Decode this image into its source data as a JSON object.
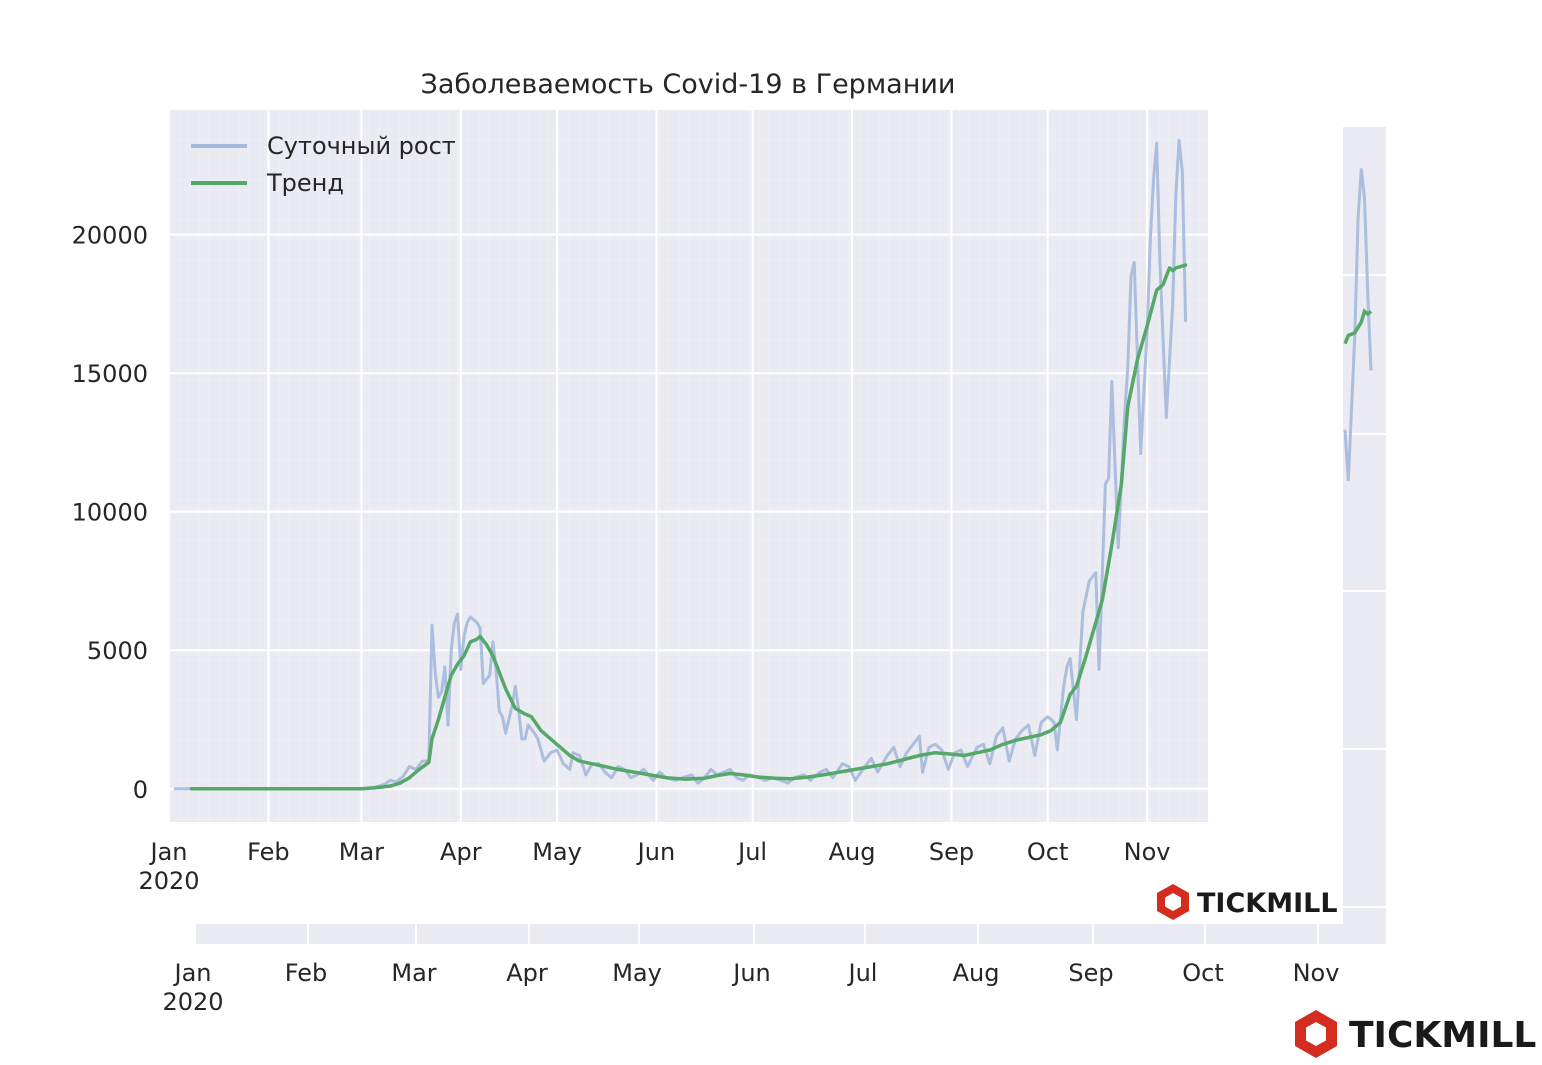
{
  "chart_data": {
    "type": "line",
    "title": "Заболеваемость Covid-19 в Германии",
    "xlabel": "",
    "ylabel": "",
    "ylim": [
      -1200,
      24500
    ],
    "yticks": [
      0,
      5000,
      10000,
      15000,
      20000
    ],
    "ytick_labels": [
      "0",
      "5000",
      "10000",
      "15000",
      "20000"
    ],
    "xticks": [
      {
        "date": "2020-01-01",
        "label": "Jan",
        "sublabel": "2020"
      },
      {
        "date": "2020-02-01",
        "label": "Feb"
      },
      {
        "date": "2020-03-01",
        "label": "Mar"
      },
      {
        "date": "2020-04-01",
        "label": "Apr"
      },
      {
        "date": "2020-05-01",
        "label": "May"
      },
      {
        "date": "2020-06-01",
        "label": "Jun"
      },
      {
        "date": "2020-07-01",
        "label": "Jul"
      },
      {
        "date": "2020-08-01",
        "label": "Aug"
      },
      {
        "date": "2020-09-01",
        "label": "Sep"
      },
      {
        "date": "2020-10-01",
        "label": "Oct"
      },
      {
        "date": "2020-11-01",
        "label": "Nov"
      }
    ],
    "xlim": [
      "2020-01-01",
      "2020-11-20"
    ],
    "grid": true,
    "legend_position": "top-left",
    "series": [
      {
        "name": "Суточный рост",
        "color": "#a4b9dc",
        "points": [
          [
            "2020-01-03",
            0
          ],
          [
            "2020-01-10",
            0
          ],
          [
            "2020-02-01",
            0
          ],
          [
            "2020-02-15",
            0
          ],
          [
            "2020-03-01",
            0
          ],
          [
            "2020-03-05",
            50
          ],
          [
            "2020-03-08",
            150
          ],
          [
            "2020-03-10",
            300
          ],
          [
            "2020-03-12",
            250
          ],
          [
            "2020-03-14",
            450
          ],
          [
            "2020-03-16",
            800
          ],
          [
            "2020-03-18",
            700
          ],
          [
            "2020-03-20",
            1000
          ],
          [
            "2020-03-22",
            1000
          ],
          [
            "2020-03-23",
            5900
          ],
          [
            "2020-03-24",
            4200
          ],
          [
            "2020-03-25",
            3300
          ],
          [
            "2020-03-26",
            3500
          ],
          [
            "2020-03-27",
            4400
          ],
          [
            "2020-03-28",
            2300
          ],
          [
            "2020-03-29",
            5000
          ],
          [
            "2020-03-30",
            6000
          ],
          [
            "2020-03-31",
            6300
          ],
          [
            "2020-04-01",
            4300
          ],
          [
            "2020-04-02",
            5500
          ],
          [
            "2020-04-03",
            6000
          ],
          [
            "2020-04-04",
            6200
          ],
          [
            "2020-04-05",
            6100
          ],
          [
            "2020-04-06",
            6000
          ],
          [
            "2020-04-07",
            5800
          ],
          [
            "2020-04-08",
            3800
          ],
          [
            "2020-04-10",
            4100
          ],
          [
            "2020-04-11",
            5300
          ],
          [
            "2020-04-12",
            4300
          ],
          [
            "2020-04-13",
            2800
          ],
          [
            "2020-04-14",
            2600
          ],
          [
            "2020-04-15",
            2000
          ],
          [
            "2020-04-17",
            3000
          ],
          [
            "2020-04-18",
            3700
          ],
          [
            "2020-04-19",
            2900
          ],
          [
            "2020-04-20",
            1800
          ],
          [
            "2020-04-21",
            1800
          ],
          [
            "2020-04-22",
            2300
          ],
          [
            "2020-04-24",
            2000
          ],
          [
            "2020-04-25",
            1800
          ],
          [
            "2020-04-27",
            1000
          ],
          [
            "2020-04-29",
            1300
          ],
          [
            "2020-05-01",
            1400
          ],
          [
            "2020-05-03",
            900
          ],
          [
            "2020-05-05",
            700
          ],
          [
            "2020-05-06",
            1300
          ],
          [
            "2020-05-08",
            1200
          ],
          [
            "2020-05-10",
            500
          ],
          [
            "2020-05-12",
            900
          ],
          [
            "2020-05-14",
            900
          ],
          [
            "2020-05-16",
            600
          ],
          [
            "2020-05-18",
            400
          ],
          [
            "2020-05-20",
            800
          ],
          [
            "2020-05-22",
            700
          ],
          [
            "2020-05-24",
            400
          ],
          [
            "2020-05-26",
            500
          ],
          [
            "2020-05-28",
            700
          ],
          [
            "2020-05-31",
            300
          ],
          [
            "2020-06-02",
            600
          ],
          [
            "2020-06-04",
            400
          ],
          [
            "2020-06-07",
            300
          ],
          [
            "2020-06-09",
            400
          ],
          [
            "2020-06-12",
            500
          ],
          [
            "2020-06-14",
            200
          ],
          [
            "2020-06-16",
            400
          ],
          [
            "2020-06-18",
            700
          ],
          [
            "2020-06-20",
            500
          ],
          [
            "2020-06-22",
            600
          ],
          [
            "2020-06-24",
            700
          ],
          [
            "2020-06-26",
            400
          ],
          [
            "2020-06-28",
            300
          ],
          [
            "2020-06-30",
            500
          ],
          [
            "2020-07-03",
            400
          ],
          [
            "2020-07-05",
            300
          ],
          [
            "2020-07-07",
            400
          ],
          [
            "2020-07-10",
            300
          ],
          [
            "2020-07-12",
            200
          ],
          [
            "2020-07-14",
            400
          ],
          [
            "2020-07-17",
            500
          ],
          [
            "2020-07-19",
            300
          ],
          [
            "2020-07-22",
            600
          ],
          [
            "2020-07-24",
            700
          ],
          [
            "2020-07-26",
            400
          ],
          [
            "2020-07-29",
            900
          ],
          [
            "2020-07-31",
            800
          ],
          [
            "2020-08-02",
            300
          ],
          [
            "2020-08-05",
            800
          ],
          [
            "2020-08-07",
            1100
          ],
          [
            "2020-08-09",
            600
          ],
          [
            "2020-08-12",
            1200
          ],
          [
            "2020-08-14",
            1500
          ],
          [
            "2020-08-16",
            800
          ],
          [
            "2020-08-18",
            1300
          ],
          [
            "2020-08-20",
            1600
          ],
          [
            "2020-08-22",
            1900
          ],
          [
            "2020-08-23",
            600
          ],
          [
            "2020-08-25",
            1500
          ],
          [
            "2020-08-27",
            1600
          ],
          [
            "2020-08-29",
            1400
          ],
          [
            "2020-08-31",
            700
          ],
          [
            "2020-09-02",
            1300
          ],
          [
            "2020-09-04",
            1400
          ],
          [
            "2020-09-06",
            800
          ],
          [
            "2020-09-09",
            1500
          ],
          [
            "2020-09-11",
            1600
          ],
          [
            "2020-09-13",
            900
          ],
          [
            "2020-09-15",
            1900
          ],
          [
            "2020-09-17",
            2200
          ],
          [
            "2020-09-19",
            1000
          ],
          [
            "2020-09-21",
            1800
          ],
          [
            "2020-09-23",
            2100
          ],
          [
            "2020-09-25",
            2300
          ],
          [
            "2020-09-27",
            1200
          ],
          [
            "2020-09-29",
            2400
          ],
          [
            "2020-10-01",
            2600
          ],
          [
            "2020-10-03",
            2400
          ],
          [
            "2020-10-04",
            1400
          ],
          [
            "2020-10-06",
            3700
          ],
          [
            "2020-10-07",
            4400
          ],
          [
            "2020-10-08",
            4700
          ],
          [
            "2020-10-10",
            2500
          ],
          [
            "2020-10-12",
            6400
          ],
          [
            "2020-10-14",
            7500
          ],
          [
            "2020-10-16",
            7800
          ],
          [
            "2020-10-17",
            4300
          ],
          [
            "2020-10-19",
            11000
          ],
          [
            "2020-10-20",
            11200
          ],
          [
            "2020-10-21",
            14700
          ],
          [
            "2020-10-23",
            8700
          ],
          [
            "2020-10-25",
            13500
          ],
          [
            "2020-10-26",
            15200
          ],
          [
            "2020-10-27",
            18500
          ],
          [
            "2020-10-28",
            19000
          ],
          [
            "2020-10-30",
            12100
          ],
          [
            "2020-11-01",
            16500
          ],
          [
            "2020-11-02",
            19800
          ],
          [
            "2020-11-03",
            22000
          ],
          [
            "2020-11-04",
            23300
          ],
          [
            "2020-11-05",
            19000
          ],
          [
            "2020-11-07",
            13400
          ],
          [
            "2020-11-09",
            17500
          ],
          [
            "2020-11-10",
            21500
          ],
          [
            "2020-11-11",
            23400
          ],
          [
            "2020-11-12",
            22300
          ],
          [
            "2020-11-13",
            16900
          ]
        ]
      },
      {
        "name": "Тренд",
        "color": "#55a868",
        "points": [
          [
            "2020-01-08",
            0
          ],
          [
            "2020-02-01",
            0
          ],
          [
            "2020-02-20",
            0
          ],
          [
            "2020-03-01",
            0
          ],
          [
            "2020-03-05",
            30
          ],
          [
            "2020-03-10",
            100
          ],
          [
            "2020-03-13",
            200
          ],
          [
            "2020-03-16",
            400
          ],
          [
            "2020-03-19",
            700
          ],
          [
            "2020-03-22",
            950
          ],
          [
            "2020-03-23",
            1800
          ],
          [
            "2020-03-25",
            2500
          ],
          [
            "2020-03-27",
            3300
          ],
          [
            "2020-03-29",
            4100
          ],
          [
            "2020-03-31",
            4500
          ],
          [
            "2020-04-02",
            4800
          ],
          [
            "2020-04-04",
            5300
          ],
          [
            "2020-04-06",
            5400
          ],
          [
            "2020-04-07",
            5500
          ],
          [
            "2020-04-09",
            5200
          ],
          [
            "2020-04-11",
            4800
          ],
          [
            "2020-04-13",
            4200
          ],
          [
            "2020-04-15",
            3600
          ],
          [
            "2020-04-18",
            2900
          ],
          [
            "2020-04-21",
            2700
          ],
          [
            "2020-04-23",
            2600
          ],
          [
            "2020-04-26",
            2100
          ],
          [
            "2020-04-29",
            1800
          ],
          [
            "2020-05-02",
            1500
          ],
          [
            "2020-05-05",
            1200
          ],
          [
            "2020-05-08",
            1000
          ],
          [
            "2020-05-12",
            900
          ],
          [
            "2020-05-16",
            800
          ],
          [
            "2020-05-20",
            700
          ],
          [
            "2020-05-25",
            600
          ],
          [
            "2020-05-30",
            500
          ],
          [
            "2020-06-04",
            400
          ],
          [
            "2020-06-10",
            350
          ],
          [
            "2020-06-16",
            380
          ],
          [
            "2020-06-20",
            480
          ],
          [
            "2020-06-24",
            550
          ],
          [
            "2020-06-28",
            500
          ],
          [
            "2020-07-03",
            420
          ],
          [
            "2020-07-08",
            380
          ],
          [
            "2020-07-13",
            360
          ],
          [
            "2020-07-18",
            420
          ],
          [
            "2020-07-23",
            500
          ],
          [
            "2020-07-28",
            600
          ],
          [
            "2020-08-02",
            700
          ],
          [
            "2020-08-07",
            800
          ],
          [
            "2020-08-12",
            900
          ],
          [
            "2020-08-17",
            1050
          ],
          [
            "2020-08-22",
            1200
          ],
          [
            "2020-08-27",
            1300
          ],
          [
            "2020-09-01",
            1250
          ],
          [
            "2020-09-05",
            1200
          ],
          [
            "2020-09-09",
            1300
          ],
          [
            "2020-09-13",
            1400
          ],
          [
            "2020-09-17",
            1600
          ],
          [
            "2020-09-21",
            1750
          ],
          [
            "2020-09-25",
            1850
          ],
          [
            "2020-09-29",
            1950
          ],
          [
            "2020-10-02",
            2100
          ],
          [
            "2020-10-05",
            2400
          ],
          [
            "2020-10-08",
            3400
          ],
          [
            "2020-10-10",
            3700
          ],
          [
            "2020-10-13",
            4800
          ],
          [
            "2020-10-16",
            6000
          ],
          [
            "2020-10-18",
            6800
          ],
          [
            "2020-10-21",
            8800
          ],
          [
            "2020-10-24",
            11000
          ],
          [
            "2020-10-26",
            13800
          ],
          [
            "2020-10-29",
            15500
          ],
          [
            "2020-11-01",
            16700
          ],
          [
            "2020-11-04",
            18000
          ],
          [
            "2020-11-06",
            18200
          ],
          [
            "2020-11-08",
            18800
          ],
          [
            "2020-11-09",
            18700
          ],
          [
            "2020-11-10",
            18800
          ],
          [
            "2020-11-13",
            18900
          ]
        ]
      }
    ],
    "duplicate_panel": {
      "xticks": [
        {
          "label": "Jan",
          "sublabel": "2020"
        },
        {
          "label": "Feb"
        },
        {
          "label": "Mar"
        },
        {
          "label": "Apr"
        },
        {
          "label": "May"
        },
        {
          "label": "Jun"
        },
        {
          "label": "Jul"
        },
        {
          "label": "Aug"
        },
        {
          "label": "Sep"
        },
        {
          "label": "Oct"
        },
        {
          "label": "Nov"
        }
      ],
      "daily_tail": [
        [
          "2020-11-01",
          13000
        ],
        [
          "2020-11-02",
          11100
        ],
        [
          "2020-11-04",
          16500
        ],
        [
          "2020-11-05",
          20800
        ],
        [
          "2020-11-06",
          22700
        ],
        [
          "2020-11-07",
          21600
        ],
        [
          "2020-11-08",
          18000
        ],
        [
          "2020-11-09",
          15200
        ]
      ],
      "trend_tail": [
        [
          "2020-11-01",
          16200
        ],
        [
          "2020-11-02",
          16500
        ],
        [
          "2020-11-04",
          16600
        ],
        [
          "2020-11-06",
          17000
        ],
        [
          "2020-11-07",
          17400
        ],
        [
          "2020-11-08",
          17300
        ],
        [
          "2020-11-09",
          17400
        ]
      ]
    }
  },
  "branding": {
    "logo_text": "TICKMILL",
    "logo_color": "#d42c1f"
  }
}
